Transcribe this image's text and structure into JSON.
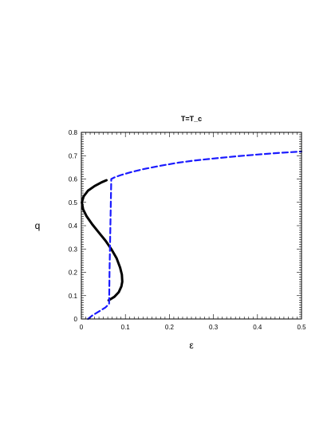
{
  "chart_data": {
    "type": "line",
    "title": "T=T_c",
    "xlabel": "ε",
    "ylabel": "q",
    "xlim": [
      0,
      0.5
    ],
    "ylim": [
      0,
      0.8
    ],
    "xticks": [
      0,
      0.1,
      0.2,
      0.3,
      0.4,
      0.5
    ],
    "xtick_labels": [
      "0",
      "0.1",
      "0.2",
      "0.3",
      "0.4",
      "0.5"
    ],
    "yticks": [
      0,
      0.1,
      0.2,
      0.3,
      0.4,
      0.5,
      0.6,
      0.7,
      0.8
    ],
    "ytick_labels": [
      "0",
      "0.1",
      "0.2",
      "0.3",
      "0.4",
      "0.5",
      "0.6",
      "0.7",
      "0.8"
    ],
    "grid": false,
    "series": [
      {
        "style": "solid",
        "color": "#000000",
        "x": [
          0.057,
          0.045,
          0.03,
          0.015,
          0.005,
          0.001,
          0.004,
          0.012,
          0.025,
          0.04,
          0.055,
          0.068,
          0.08,
          0.088,
          0.092,
          0.093,
          0.091,
          0.085,
          0.075,
          0.062
        ],
        "y": [
          0.595,
          0.585,
          0.57,
          0.55,
          0.525,
          0.5,
          0.47,
          0.44,
          0.405,
          0.37,
          0.335,
          0.3,
          0.26,
          0.22,
          0.19,
          0.16,
          0.14,
          0.115,
          0.095,
          0.08
        ]
      },
      {
        "style": "dashed",
        "color": "#1a1aff",
        "x": [
          0.015,
          0.025,
          0.04,
          0.055,
          0.063,
          0.064,
          0.066,
          0.068,
          0.075,
          0.09,
          0.11,
          0.14,
          0.18,
          0.22,
          0.26,
          0.3,
          0.35,
          0.4,
          0.45,
          0.5
        ],
        "y": [
          0.0,
          0.015,
          0.032,
          0.05,
          0.065,
          0.2,
          0.4,
          0.6,
          0.607,
          0.617,
          0.628,
          0.642,
          0.657,
          0.67,
          0.68,
          0.688,
          0.697,
          0.705,
          0.712,
          0.718
        ]
      }
    ]
  }
}
